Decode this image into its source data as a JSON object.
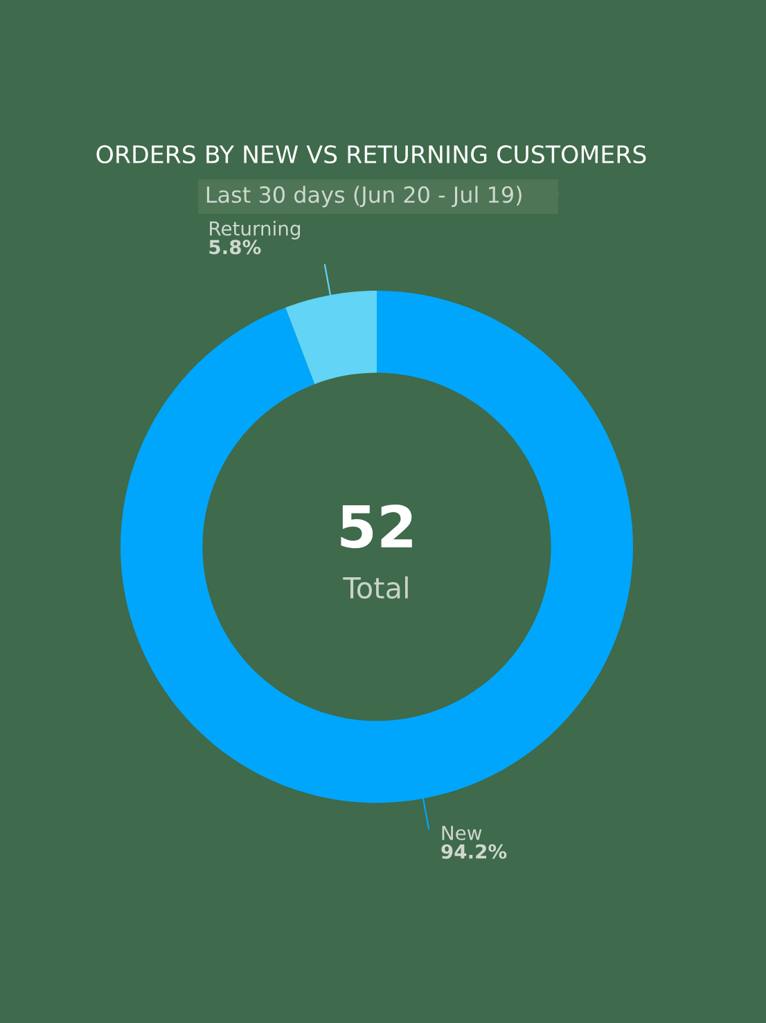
{
  "chart_data": {
    "type": "donut",
    "title": "ORDERS BY NEW VS RETURNING CUSTOMERS",
    "subtitle": "Last 30 days (Jun 20 - Jul 19)",
    "categories": [
      "New",
      "Returning"
    ],
    "values": [
      94.2,
      5.8
    ],
    "colors": [
      "#00a6fb",
      "#62d4f5"
    ],
    "value_labels": [
      "94.2%",
      "5.8%"
    ],
    "annotations": [
      "52",
      "Total"
    ]
  }
}
